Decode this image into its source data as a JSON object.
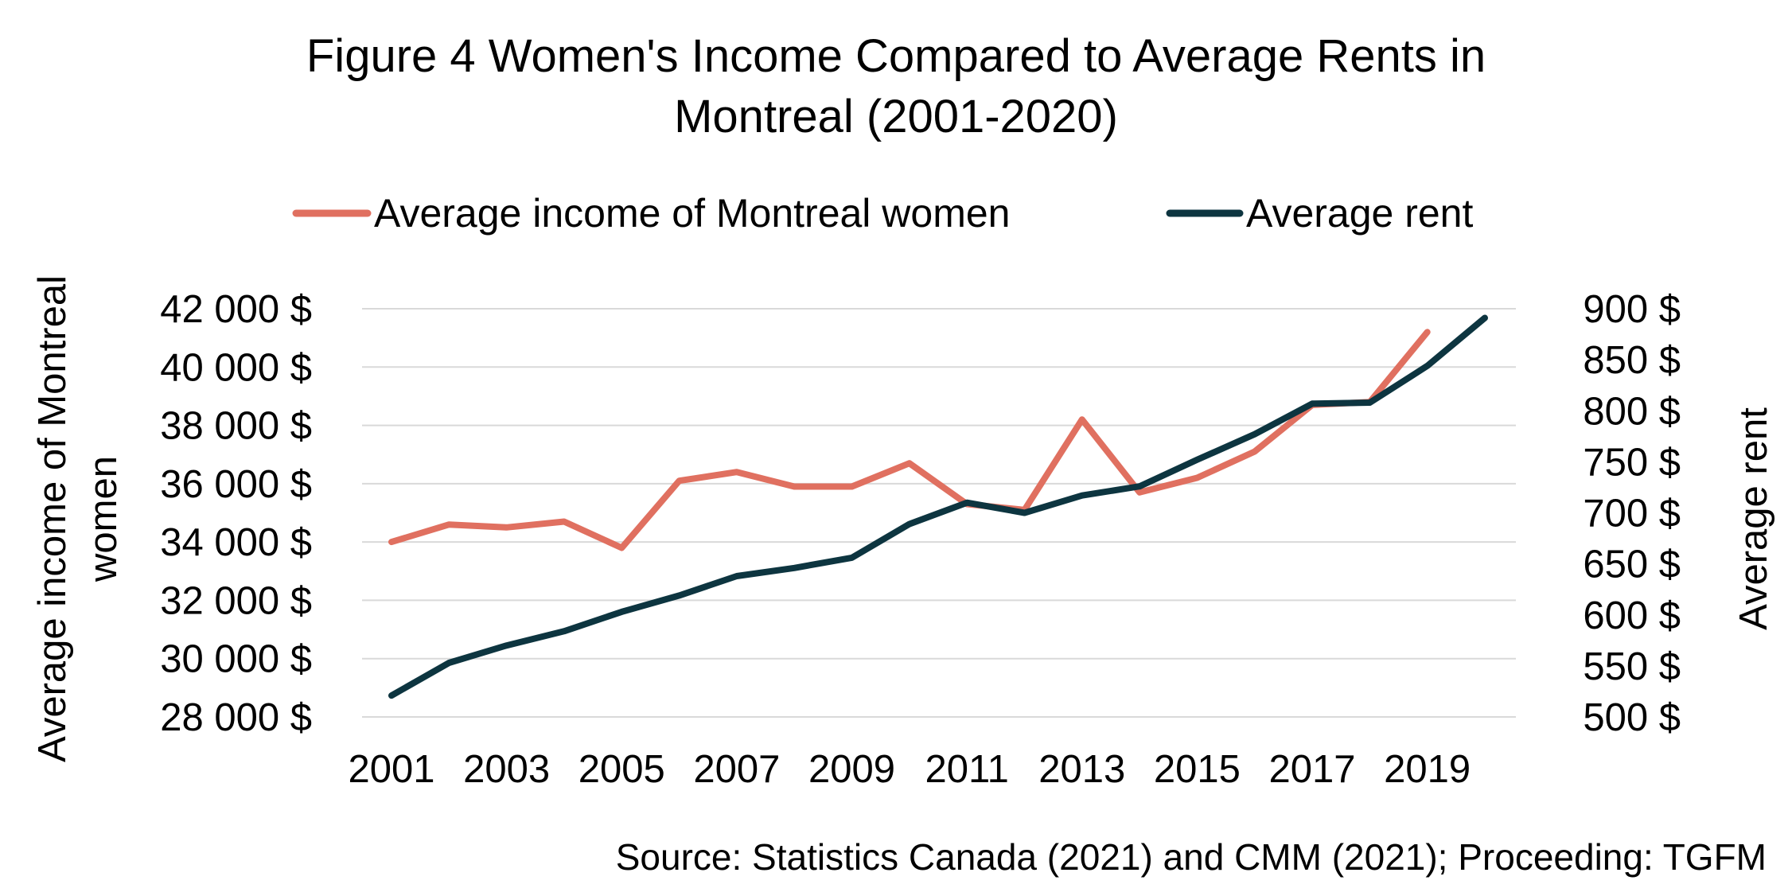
{
  "chart_data": {
    "type": "line",
    "title_lines": [
      "Figure 4 Women's Income Compared to Average Rents in",
      "Montreal (2001-2020)"
    ],
    "source": "Source: Statistics Canada (2021) and CMM (2021); Proceeding: TGFM",
    "x": [
      2001,
      2002,
      2003,
      2004,
      2005,
      2006,
      2007,
      2008,
      2009,
      2010,
      2011,
      2012,
      2013,
      2014,
      2015,
      2016,
      2017,
      2018,
      2019,
      2020
    ],
    "x_tick_labels": [
      "2001",
      "2003",
      "2005",
      "2007",
      "2009",
      "2011",
      "2013",
      "2015",
      "2017",
      "2019"
    ],
    "y_left": {
      "label_lines": [
        "Average income of Montreal",
        "women"
      ],
      "range": [
        28000,
        42000
      ],
      "ticks": [
        {
          "value": 28000,
          "label": "28 000  $"
        },
        {
          "value": 30000,
          "label": "30 000  $"
        },
        {
          "value": 32000,
          "label": "32 000  $"
        },
        {
          "value": 34000,
          "label": "34 000  $"
        },
        {
          "value": 36000,
          "label": "36 000  $"
        },
        {
          "value": 38000,
          "label": "38 000  $"
        },
        {
          "value": 40000,
          "label": "40 000  $"
        },
        {
          "value": 42000,
          "label": "42 000  $"
        }
      ]
    },
    "y_right": {
      "label": "Average rent",
      "range": [
        500,
        900
      ],
      "ticks": [
        {
          "value": 500,
          "label": "500  $"
        },
        {
          "value": 550,
          "label": "550  $"
        },
        {
          "value": 600,
          "label": "600  $"
        },
        {
          "value": 650,
          "label": "650  $"
        },
        {
          "value": 700,
          "label": "700  $"
        },
        {
          "value": 750,
          "label": "750  $"
        },
        {
          "value": 800,
          "label": "800  $"
        },
        {
          "value": 850,
          "label": "850  $"
        },
        {
          "value": 900,
          "label": "900  $"
        }
      ]
    },
    "grid": true,
    "legend_position": "top",
    "series": [
      {
        "name": "Average income of Montreal women",
        "axis": "left",
        "color": "#e07060",
        "values": [
          34000,
          34600,
          34500,
          34700,
          33800,
          36100,
          36400,
          35900,
          35900,
          36700,
          35300,
          35100,
          38200,
          35700,
          36200,
          37100,
          38700,
          38800,
          41200,
          null
        ]
      },
      {
        "name": "Average rent",
        "axis": "right",
        "color": "#0d3540",
        "values": [
          521,
          553,
          570,
          584,
          603,
          619,
          638,
          646,
          656,
          689,
          710,
          700,
          717,
          726,
          752,
          777,
          807,
          808,
          844,
          891
        ]
      }
    ]
  }
}
